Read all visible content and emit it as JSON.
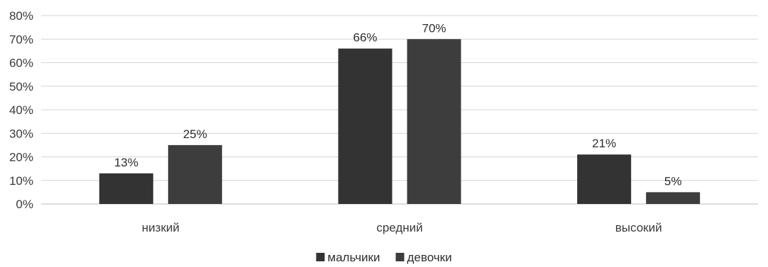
{
  "chart_data": {
    "type": "bar",
    "categories": [
      "низкий",
      "средний",
      "высокий"
    ],
    "series": [
      {
        "name": "мальчики",
        "values": [
          13,
          66,
          21
        ],
        "color": "#333333"
      },
      {
        "name": "девочки",
        "values": [
          25,
          70,
          5
        ],
        "color": "#3d3d3d"
      }
    ],
    "data_labels": [
      [
        "13%",
        "66%",
        "21%"
      ],
      [
        "25%",
        "70%",
        "5%"
      ]
    ],
    "ylim": [
      0,
      80
    ],
    "yticks": [
      0,
      10,
      20,
      30,
      40,
      50,
      60,
      70,
      80
    ],
    "ytick_labels": [
      "0%",
      "10%",
      "20%",
      "30%",
      "40%",
      "50%",
      "60%",
      "70%",
      "80%"
    ],
    "grid": true,
    "legend_position": "bottom-center",
    "title": "",
    "xlabel": "",
    "ylabel": ""
  }
}
